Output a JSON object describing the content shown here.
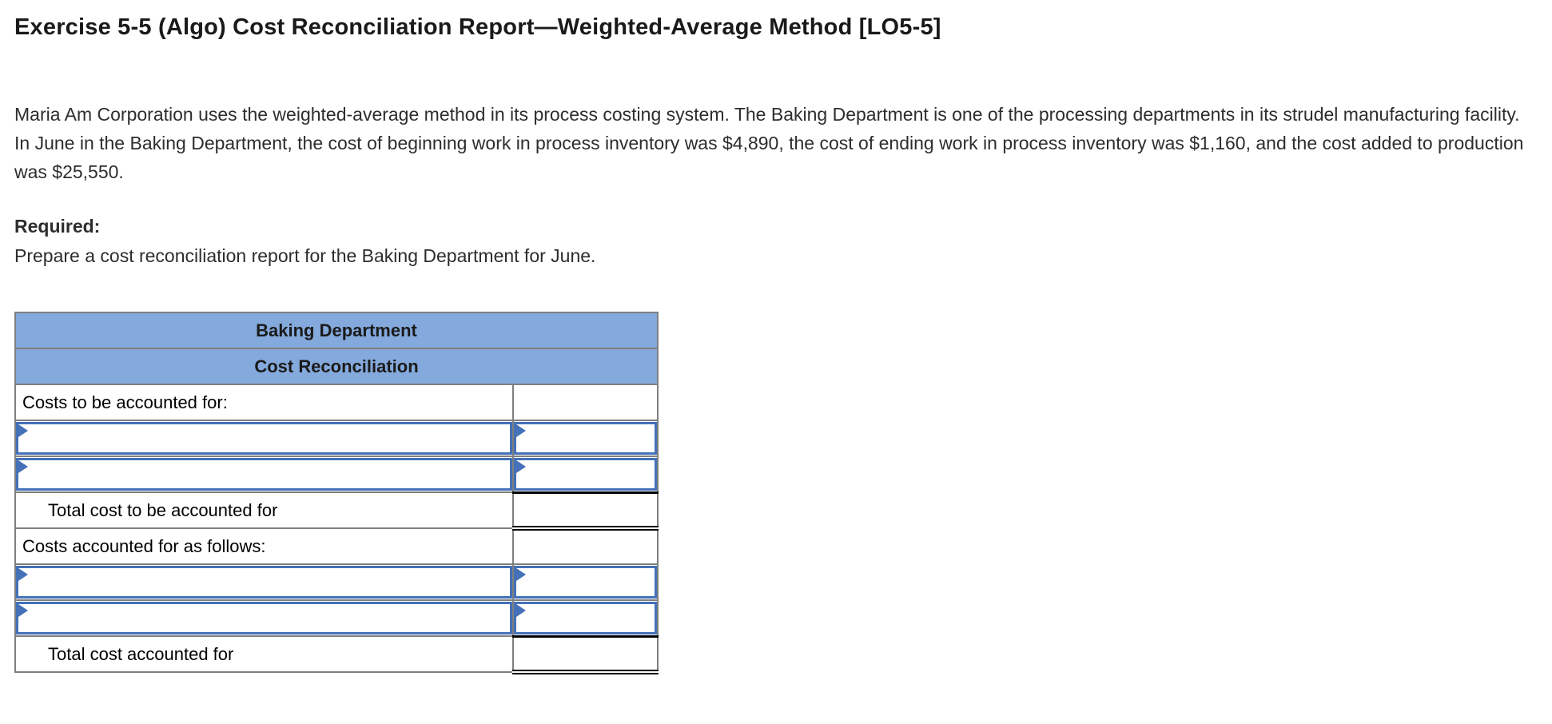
{
  "header": {
    "title": "Exercise 5-5 (Algo) Cost Reconciliation Report—Weighted-Average Method [LO5-5]"
  },
  "intro": {
    "problem_statement": "Maria Am Corporation uses the weighted-average method in its process costing system. The Baking Department is one of the processing departments in its strudel manufacturing facility. In June in the Baking Department, the cost of beginning work in process inventory was $4,890, the cost of ending work in process inventory was $1,160, and the cost added to production was $25,550.",
    "required_label": "Required:",
    "required_instruction": "Prepare a cost reconciliation report for the Baking Department for June."
  },
  "report_table": {
    "title": "Baking Department",
    "subtitle": "Cost Reconciliation",
    "rows": {
      "costs_to_be_accounted_for_label": "Costs to be accounted for:",
      "total_cost_to_be_accounted_for_label": "Total cost to be accounted for",
      "costs_accounted_for_label": "Costs accounted for as follows:",
      "total_cost_accounted_for_label": "Total cost accounted for"
    },
    "dropdown_cells": {
      "value": "",
      "icon": "dropdown-flag-icon"
    },
    "colors": {
      "header_bg": "#84a9dc",
      "input_border": "#4471b8",
      "grid_border": "#7f7f7f"
    }
  }
}
